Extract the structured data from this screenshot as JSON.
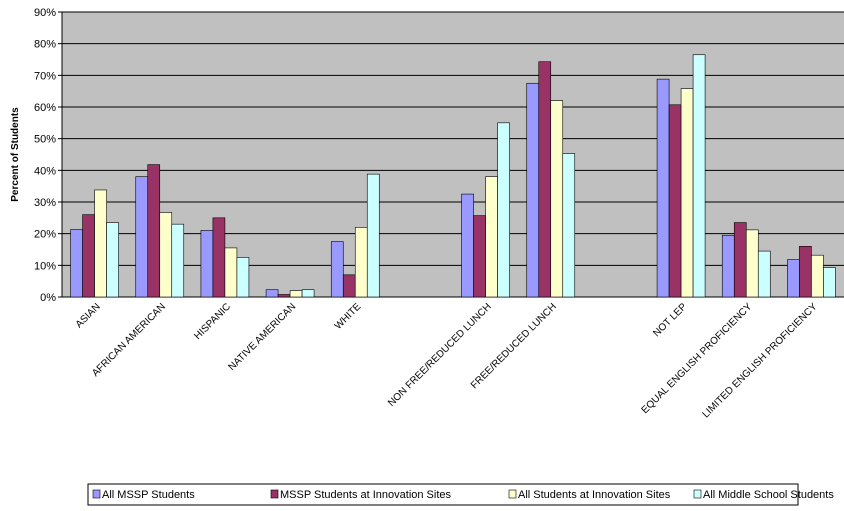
{
  "chart_data": {
    "type": "bar",
    "title": "",
    "xlabel": "",
    "ylabel": "Percent of Students",
    "ylim": [
      0,
      90
    ],
    "yticks": [
      "0%",
      "10%",
      "20%",
      "30%",
      "40%",
      "50%",
      "60%",
      "70%",
      "80%",
      "90%"
    ],
    "grid": true,
    "legend_position": "bottom",
    "categories": [
      "ASIAN",
      "AFRICAN AMERICAN",
      "HISPANIC",
      "NATIVE AMERICAN",
      "WHITE",
      "",
      "NON FREE/REDUCED LUNCH",
      "FREE/REDUCED LUNCH",
      "",
      "NOT LEP",
      "EQUAL ENGLISH PROFICIENCY",
      "LIMITED ENGLISH PROFICIENCY"
    ],
    "series": [
      {
        "name": "All MSSP Students",
        "color": "#9999ff",
        "values": [
          21.3,
          38.0,
          21.0,
          2.3,
          17.5,
          null,
          32.5,
          67.5,
          null,
          68.8,
          19.5,
          11.8
        ]
      },
      {
        "name": "MSSP Students at Innovation Sites",
        "color": "#993366",
        "values": [
          26.0,
          41.8,
          25.0,
          0.8,
          7.0,
          null,
          25.7,
          74.3,
          null,
          60.7,
          23.5,
          16.0
        ]
      },
      {
        "name": "All Students at Innovation Sites",
        "color": "#ffffcc",
        "values": [
          33.8,
          26.7,
          15.5,
          2.0,
          22.0,
          null,
          38.0,
          62.0,
          null,
          65.8,
          21.2,
          13.2
        ]
      },
      {
        "name": "All Middle School Students",
        "color": "#ccffff",
        "values": [
          23.5,
          23.0,
          12.5,
          2.3,
          38.8,
          null,
          55.0,
          45.3,
          null,
          76.5,
          14.5,
          9.3
        ]
      }
    ],
    "colors": {
      "plot_background": "#c0c0c0",
      "gridline": "#000000",
      "bar_outline": "#000000"
    }
  }
}
